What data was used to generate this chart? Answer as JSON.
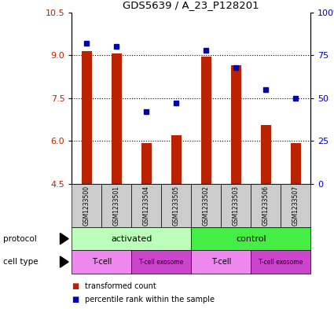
{
  "title": "GDS5639 / A_23_P128201",
  "samples": [
    "GSM1233500",
    "GSM1233501",
    "GSM1233504",
    "GSM1233505",
    "GSM1233502",
    "GSM1233503",
    "GSM1233506",
    "GSM1233507"
  ],
  "bar_values": [
    9.15,
    9.05,
    5.92,
    6.2,
    8.95,
    8.65,
    6.55,
    5.92
  ],
  "dot_values_pct": [
    82,
    80,
    42,
    47,
    78,
    68,
    55,
    50
  ],
  "ylim": [
    4.5,
    10.5
  ],
  "yticks": [
    4.5,
    6.0,
    7.5,
    9.0,
    10.5
  ],
  "y2ticks": [
    0,
    25,
    50,
    75,
    100
  ],
  "y2labels": [
    "0",
    "25",
    "50",
    "75",
    "100%"
  ],
  "bar_color": "#bb2200",
  "dot_color": "#0000bb",
  "bar_bottom": 4.5,
  "color_activated": "#bbffbb",
  "color_control": "#44ee44",
  "color_tcell": "#ee88ee",
  "color_exosome": "#cc44cc",
  "color_sample_bg": "#cccccc",
  "legend_tc_label": "transformed count",
  "legend_pr_label": "percentile rank within the sample",
  "grid_lines": [
    6.0,
    7.5,
    9.0
  ]
}
